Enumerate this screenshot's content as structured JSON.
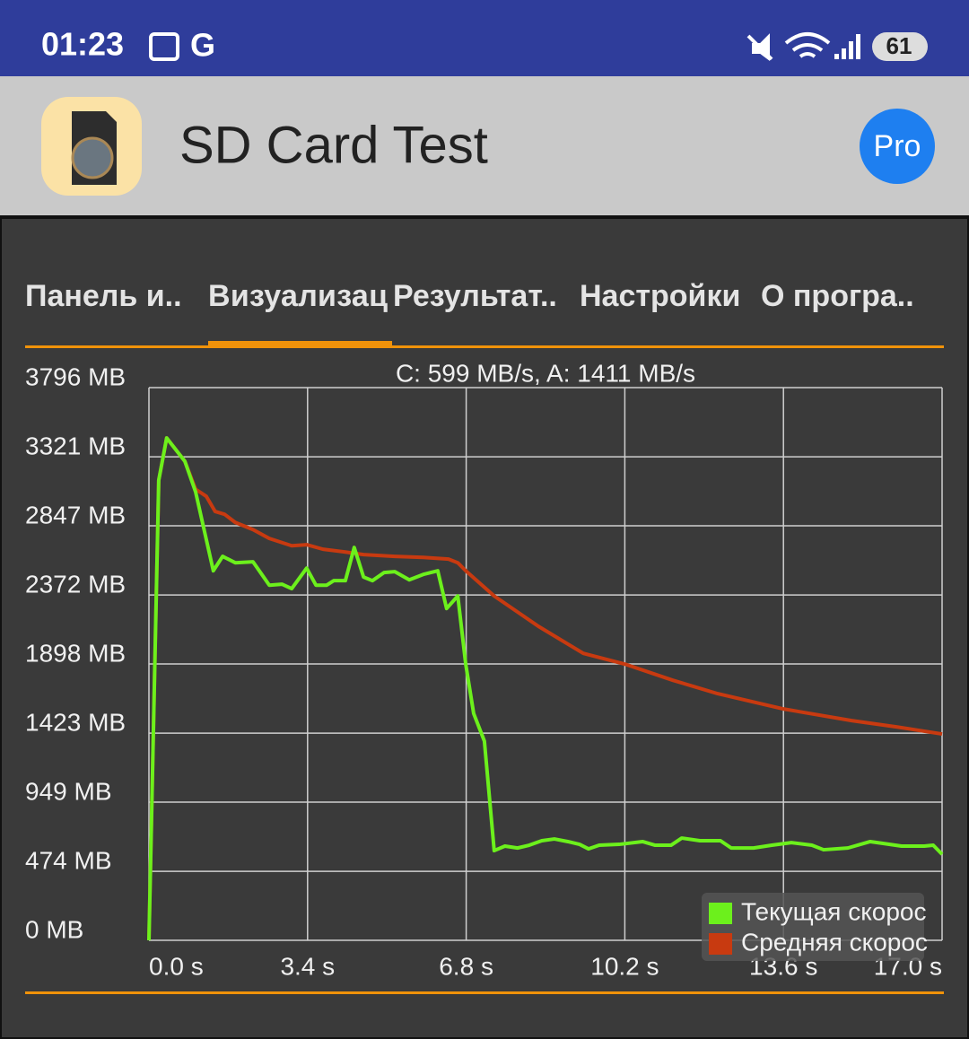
{
  "status_bar": {
    "time": "01:23",
    "icon_letter": "G",
    "battery": "61"
  },
  "app_bar": {
    "title": "SD Card Test",
    "pro_button": "Pro"
  },
  "tabs": [
    "Панель и..",
    "Визуализац",
    "Результат..",
    "Настройки",
    "О програ.."
  ],
  "chart_data": {
    "type": "line",
    "title": "C: 599 MB/s, A: 1411 MB/s",
    "xlim": [
      0,
      17.0
    ],
    "xticks": [
      {
        "value": 0,
        "label": "0.0 s"
      },
      {
        "value": 3.4,
        "label": "3.4 s"
      },
      {
        "value": 6.8,
        "label": "6.8 s"
      },
      {
        "value": 10.2,
        "label": "10.2 s"
      },
      {
        "value": 13.6,
        "label": "13.6 s"
      },
      {
        "value": 17.0,
        "label": "17.0 s"
      }
    ],
    "ylim": [
      0,
      3796
    ],
    "yticks": [
      {
        "value": 0,
        "label": "0 MB"
      },
      {
        "value": 474,
        "label": "474 MB"
      },
      {
        "value": 949,
        "label": "949 MB"
      },
      {
        "value": 1423,
        "label": "1423 MB"
      },
      {
        "value": 1898,
        "label": "1898 MB"
      },
      {
        "value": 2372,
        "label": "2372 MB"
      },
      {
        "value": 2847,
        "label": "2847 MB"
      },
      {
        "value": 3321,
        "label": "3321 MB"
      },
      {
        "value": 3796,
        "label": "3796 MB"
      }
    ],
    "grid": true,
    "legend": "bottom-right",
    "series": [
      {
        "name": "Текущая скорос",
        "color": "#6cf01c",
        "x": [
          0,
          0.21,
          0.38,
          0.77,
          1.0,
          1.38,
          1.58,
          1.85,
          2.23,
          2.58,
          2.85,
          3.06,
          3.38,
          3.58,
          3.81,
          3.96,
          4.21,
          4.4,
          4.6,
          4.79,
          5.04,
          5.27,
          5.58,
          5.88,
          6.19,
          6.38,
          6.62,
          6.79,
          6.96,
          7.19,
          7.4,
          7.63,
          7.9,
          8.15,
          8.42,
          8.69,
          8.98,
          9.23,
          9.42,
          9.65,
          10.08,
          10.58,
          10.85,
          11.19,
          11.42,
          11.81,
          12.25,
          12.48,
          12.96,
          13.35,
          13.77,
          14.21,
          14.46,
          14.98,
          15.46,
          15.75,
          16.13,
          16.62,
          16.81,
          17.0
        ],
        "values": [
          0,
          3160,
          3450,
          3290,
          3080,
          2538,
          2637,
          2593,
          2600,
          2439,
          2446,
          2415,
          2556,
          2439,
          2439,
          2470,
          2470,
          2698,
          2495,
          2470,
          2526,
          2532,
          2476,
          2513,
          2538,
          2279,
          2365,
          1897,
          1558,
          1368,
          616,
          647,
          634,
          653,
          684,
          696,
          678,
          659,
          628,
          653,
          659,
          678,
          653,
          653,
          702,
          684,
          684,
          634,
          634,
          653,
          671,
          653,
          622,
          634,
          678,
          665,
          647,
          647,
          653,
          591
        ]
      },
      {
        "name": "Средняя скорос",
        "color": "#c83a10",
        "x": [
          0,
          0.21,
          0.38,
          0.77,
          1.0,
          1.23,
          1.42,
          1.62,
          1.85,
          2.23,
          2.58,
          3.06,
          3.38,
          3.73,
          4.21,
          4.6,
          5.27,
          5.88,
          6.42,
          6.62,
          6.79,
          7.4,
          8.35,
          9.31,
          10.2,
          11.23,
          12.19,
          13.6,
          15.06,
          16.02,
          17.0
        ],
        "values": [
          0,
          3160,
          3450,
          3290,
          3098,
          3049,
          2945,
          2926,
          2870,
          2821,
          2760,
          2710,
          2717,
          2686,
          2667,
          2649,
          2637,
          2630,
          2618,
          2593,
          2538,
          2365,
          2156,
          1971,
          1897,
          1786,
          1694,
          1589,
          1509,
          1466,
          1417
        ]
      }
    ]
  }
}
